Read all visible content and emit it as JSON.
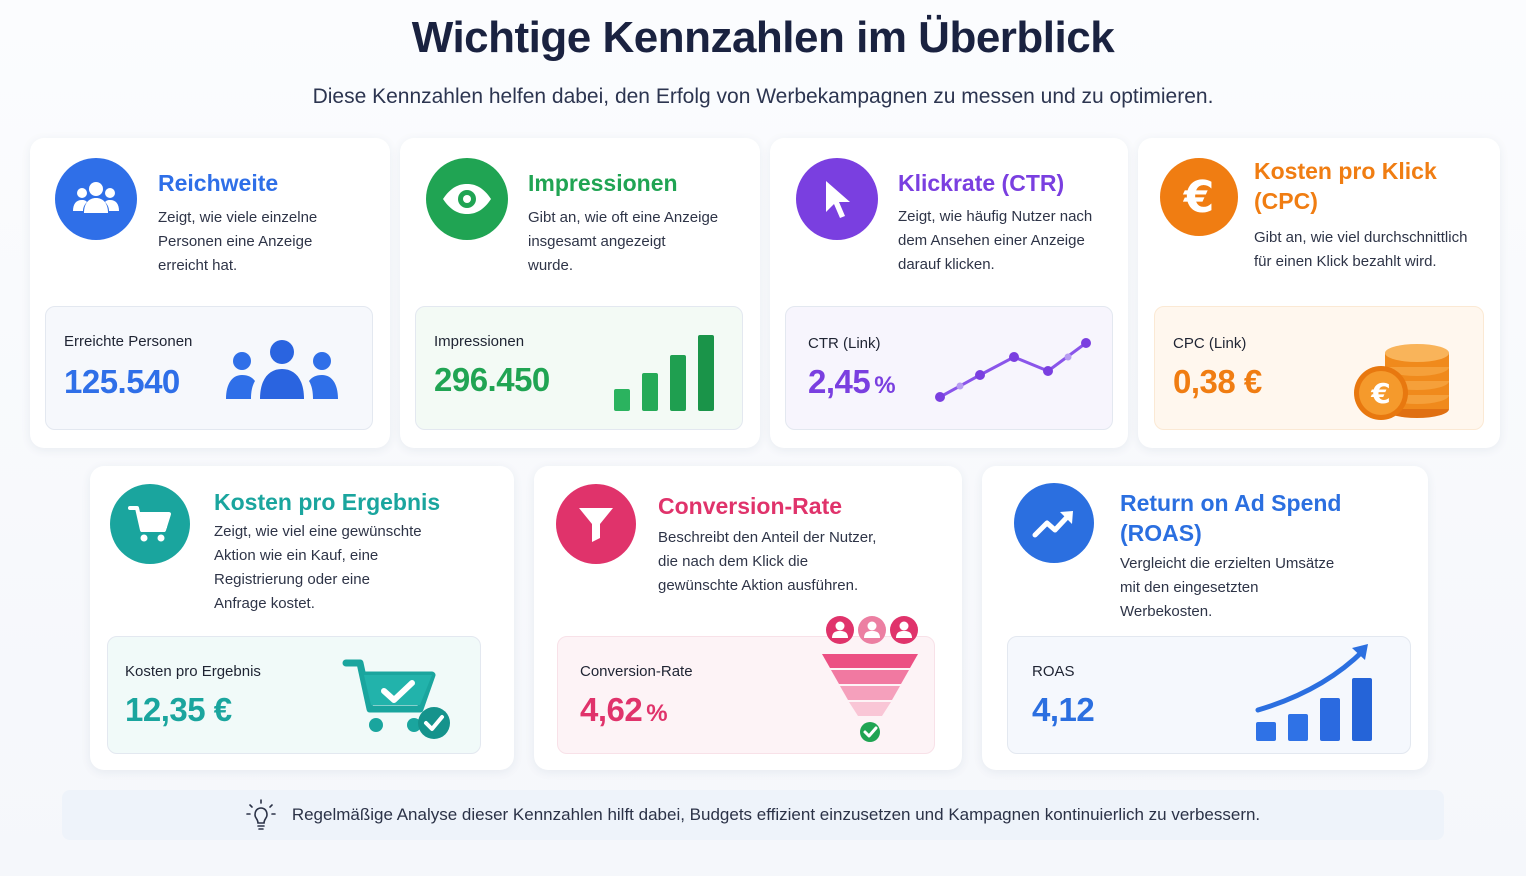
{
  "header": {
    "title": "Wichtige Kennzahlen im Überblick",
    "subtitle": "Diese Kennzahlen helfen dabei, den Erfolg von Werbekampagnen zu messen und zu optimieren."
  },
  "cards": [
    {
      "title": "Reichweite",
      "description": [
        "Zeigt, wie viele einzelne",
        "Personen eine Anzeige",
        "erreicht hat."
      ],
      "metric_label": "Erreichte Personen",
      "metric_value": "125.540",
      "metric_unit": "",
      "accent": "#2f6fe8",
      "icon": "people-icon"
    },
    {
      "title": "Impressionen",
      "description": [
        "Gibt an, wie oft eine Anzeige",
        "insgesamt angezeigt",
        "wurde."
      ],
      "metric_label": "Impressionen",
      "metric_value": "296.450",
      "metric_unit": "",
      "accent": "#20a453",
      "icon": "eye-icon"
    },
    {
      "title": "Klickrate (CTR)",
      "description": [
        "Zeigt, wie häufig Nutzer nach",
        "dem Ansehen einer Anzeige",
        "darauf klicken."
      ],
      "metric_label": "CTR (Link)",
      "metric_value": "2,45",
      "metric_unit": "%",
      "accent": "#7a3fe0",
      "icon": "cursor-icon"
    },
    {
      "title": "Kosten pro Klick (CPC)",
      "title_lines": [
        "Kosten pro Klick",
        "(CPC)"
      ],
      "description": [
        "Gibt an, wie viel durchschnittlich",
        "für einen Klick bezahlt wird."
      ],
      "metric_label": "CPC (Link)",
      "metric_value": "0,38 €",
      "metric_unit": "",
      "accent": "#f07d12",
      "icon": "euro-icon"
    },
    {
      "title": "Kosten pro Ergebnis",
      "description": [
        "Zeigt, wie viel eine gewünschte",
        "Aktion wie ein Kauf, eine",
        "Registrierung oder eine",
        "Anfrage kostet."
      ],
      "metric_label": "Kosten pro Ergebnis",
      "metric_value": "12,35 €",
      "metric_unit": "",
      "accent": "#1aa59e",
      "icon": "cart-icon"
    },
    {
      "title": "Conversion-Rate",
      "description": [
        "Beschreibt den Anteil der Nutzer,",
        "die nach dem Klick die",
        "gewünschte Aktion ausführen."
      ],
      "metric_label": "Conversion-Rate",
      "metric_value": "4,62",
      "metric_unit": "%",
      "accent": "#e0336b",
      "icon": "funnel-icon"
    },
    {
      "title": "Return on Ad Spend (ROAS)",
      "title_lines": [
        "Return on Ad Spend",
        "(ROAS)"
      ],
      "description": [
        "Vergleicht die erzielten Umsätze",
        "mit den eingesetzten",
        "Werbekosten."
      ],
      "metric_label": "ROAS",
      "metric_value": "4,12",
      "metric_unit": "",
      "accent": "#2b6fe0",
      "icon": "trend-up-icon"
    }
  ],
  "footer": {
    "text": "Regelmäßige Analyse dieser Kennzahlen hilft dabei, Budgets effizient einzusetzen und Kampagnen kontinuierlich zu verbessern.",
    "icon": "lightbulb-icon"
  }
}
